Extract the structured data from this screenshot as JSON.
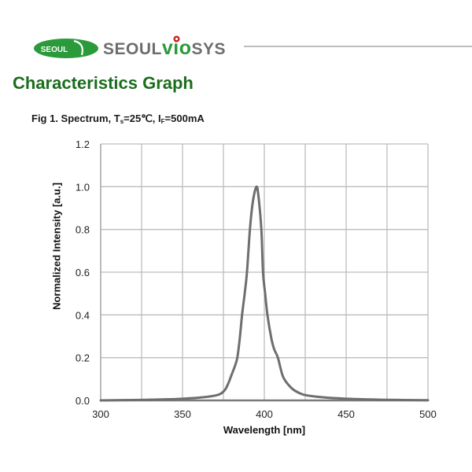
{
  "header": {
    "logo_badge_text": "SEOUL",
    "logo_word_1": "SEOUL",
    "logo_word_2": "vio",
    "logo_word_3": "SYS",
    "brand_green": "#2a9a3a",
    "brand_gray": "#6d6d6d",
    "brand_red": "#c8202a"
  },
  "page": {
    "title": "Characteristics Graph",
    "title_color": "#1b6d1e"
  },
  "figure": {
    "caption_prefix": "Fig 1. Spectrum, T",
    "caption_sub1": "s",
    "caption_mid": "=25℃, I",
    "caption_sub2": "F",
    "caption_suffix": "=500mA"
  },
  "chart_data": {
    "type": "line",
    "title": "Fig 1. Spectrum, Ts=25℃, IF=500mA",
    "xlabel": "Wavelength [nm]",
    "ylabel": "Normalized Intensity [a.u.]",
    "xlim": [
      300,
      500
    ],
    "ylim": [
      0.0,
      1.2
    ],
    "xticks": [
      300,
      350,
      400,
      450,
      500
    ],
    "xtick_labels": [
      "300",
      "350",
      "400",
      "450",
      "500"
    ],
    "x_gridlines": [
      300,
      325,
      350,
      375,
      400,
      425,
      450,
      475,
      500
    ],
    "yticks": [
      0.0,
      0.2,
      0.4,
      0.6,
      0.8,
      1.0,
      1.2
    ],
    "ytick_labels": [
      "0.0",
      "0.2",
      "0.4",
      "0.6",
      "0.8",
      "1.0",
      "1.2"
    ],
    "grid": true,
    "legend": "none",
    "peak_wavelength": 395,
    "series": [
      {
        "name": "Spectrum",
        "color": "#6e6e6e",
        "x": [
          300,
          320,
          340,
          350,
          360,
          368,
          373,
          376,
          378,
          380,
          382,
          383.5,
          385,
          386.4,
          388,
          389.4,
          391.2,
          393,
          395.2,
          396.5,
          398.2,
          399.2,
          400.5,
          401.9,
          404.3,
          406,
          408.3,
          411.5,
          416.3,
          420,
          425,
          435,
          450,
          475,
          500
        ],
        "y": [
          0.0,
          0.002,
          0.005,
          0.008,
          0.013,
          0.02,
          0.03,
          0.05,
          0.08,
          0.12,
          0.16,
          0.2,
          0.29,
          0.4,
          0.5,
          0.6,
          0.8,
          0.93,
          1.0,
          0.95,
          0.8,
          0.6,
          0.5,
          0.4,
          0.29,
          0.24,
          0.2,
          0.11,
          0.06,
          0.04,
          0.025,
          0.015,
          0.008,
          0.003,
          0.001
        ]
      }
    ]
  }
}
